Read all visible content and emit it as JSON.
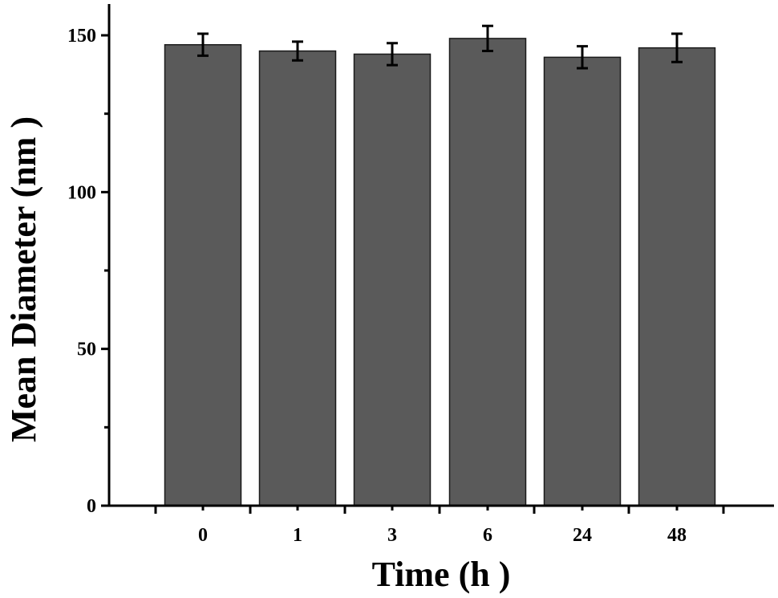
{
  "chart_data": {
    "type": "bar",
    "categories": [
      "0",
      "1",
      "3",
      "6",
      "24",
      "48"
    ],
    "values": [
      147,
      145,
      144,
      149,
      143,
      146
    ],
    "errors": [
      3.5,
      3.0,
      3.5,
      4.0,
      3.5,
      4.5
    ],
    "title": "",
    "xlabel": "Time (h )",
    "ylabel": "Mean Diameter (nm )",
    "ylim": [
      0,
      162
    ],
    "yticks": [
      0,
      50,
      100,
      150
    ],
    "grid": false,
    "legend": "none",
    "bar_color": "#5a5a5a"
  }
}
